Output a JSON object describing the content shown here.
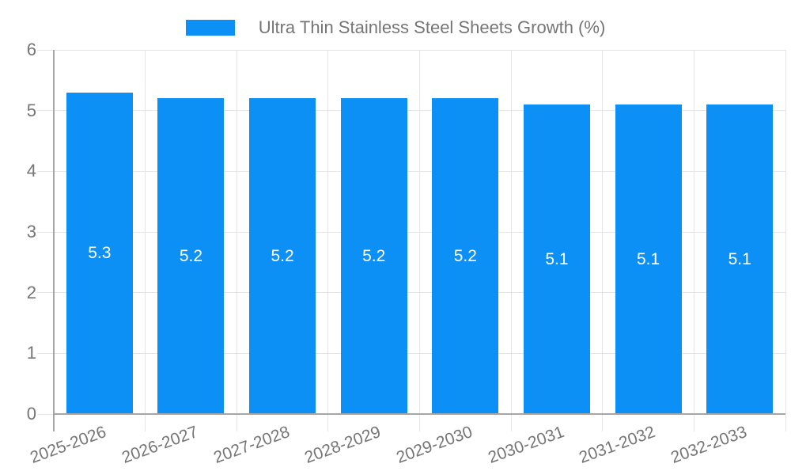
{
  "chart_data": {
    "type": "bar",
    "title": "Ultra Thin Stainless Steel Sheets Growth (%)",
    "categories": [
      "2025-2026",
      "2026-2027",
      "2027-2028",
      "2028-2029",
      "2029-2030",
      "2030-2031",
      "2031-2032",
      "2032-2033"
    ],
    "values": [
      5.3,
      5.2,
      5.2,
      5.2,
      5.2,
      5.1,
      5.1,
      5.1
    ],
    "value_labels": [
      "5.3",
      "5.2",
      "5.2",
      "5.2",
      "5.2",
      "5.1",
      "5.1",
      "5.1"
    ],
    "xlabel": "",
    "ylabel": "",
    "ylim": [
      0,
      6
    ],
    "yticks": [
      "0",
      "1",
      "2",
      "3",
      "4",
      "5",
      "6"
    ],
    "grid": true,
    "legend_position": "top",
    "colors": {
      "bar": "#0d90f5",
      "grid": "#e5e5e5",
      "axis": "#a6a6a6",
      "text": "#757575",
      "value_label": "#ffffff",
      "background": "#ffffff"
    }
  }
}
